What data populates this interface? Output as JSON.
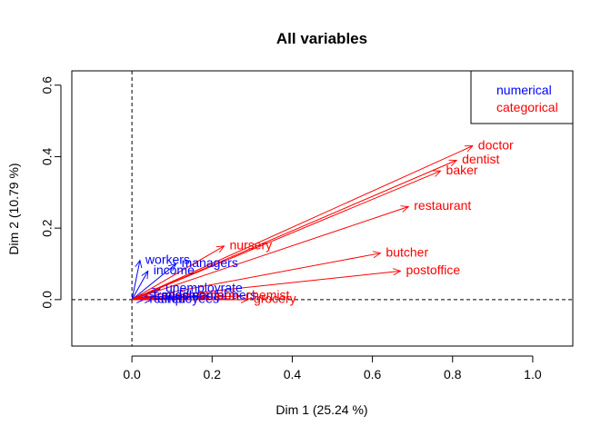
{
  "chart_data": {
    "type": "scatter",
    "title": "All variables",
    "xlabel": "Dim 1 (25.24 %)",
    "ylabel": "Dim 2 (10.79 %)",
    "xlim": [
      -0.15,
      1.1
    ],
    "ylim": [
      -0.13,
      0.64
    ],
    "x_ticks": [
      "0.0",
      "0.2",
      "0.4",
      "0.6",
      "0.8",
      "1.0"
    ],
    "y_ticks": [
      "0.0",
      "0.2",
      "0.4",
      "0.6"
    ],
    "grid": false,
    "reference_lines": "dashed lines at x = 0 and y = 0",
    "legend": {
      "position": "top-right",
      "entries": [
        {
          "label": "numerical",
          "color": "#0000ff"
        },
        {
          "label": "categorical",
          "color": "#ff0000"
        }
      ]
    },
    "series": [
      {
        "name": "numerical",
        "color": "#0000ff",
        "arrows": [
          {
            "label": "workers",
            "x": 0.02,
            "y": 0.11
          },
          {
            "label": "income",
            "x": 0.04,
            "y": 0.08
          },
          {
            "label": "managers",
            "x": 0.11,
            "y": 0.1
          },
          {
            "label": "unemployrate",
            "x": 0.07,
            "y": 0.03
          },
          {
            "label": "farmers",
            "x": 0.19,
            "y": 0.01
          },
          {
            "label": "tradesmen",
            "x": 0.04,
            "y": 0.01
          },
          {
            "label": "middleempl",
            "x": 0.06,
            "y": 0.01
          },
          {
            "label": "retired",
            "x": 0.03,
            "y": 0.0
          },
          {
            "label": "employees",
            "x": 0.05,
            "y": 0.0
          }
        ]
      },
      {
        "name": "categorical",
        "color": "#ff0000",
        "arrows": [
          {
            "label": "doctor",
            "x": 0.85,
            "y": 0.43
          },
          {
            "label": "dentist",
            "x": 0.81,
            "y": 0.39
          },
          {
            "label": "baker",
            "x": 0.77,
            "y": 0.36
          },
          {
            "label": "restaurant",
            "x": 0.69,
            "y": 0.26
          },
          {
            "label": "nursery",
            "x": 0.23,
            "y": 0.15
          },
          {
            "label": "butcher",
            "x": 0.62,
            "y": 0.13
          },
          {
            "label": "postoffice",
            "x": 0.67,
            "y": 0.08
          },
          {
            "label": "school",
            "x": 0.15,
            "y": 0.01
          },
          {
            "label": "chemist",
            "x": 0.27,
            "y": 0.01
          },
          {
            "label": "grocery",
            "x": 0.29,
            "y": 0.0
          }
        ]
      }
    ]
  }
}
